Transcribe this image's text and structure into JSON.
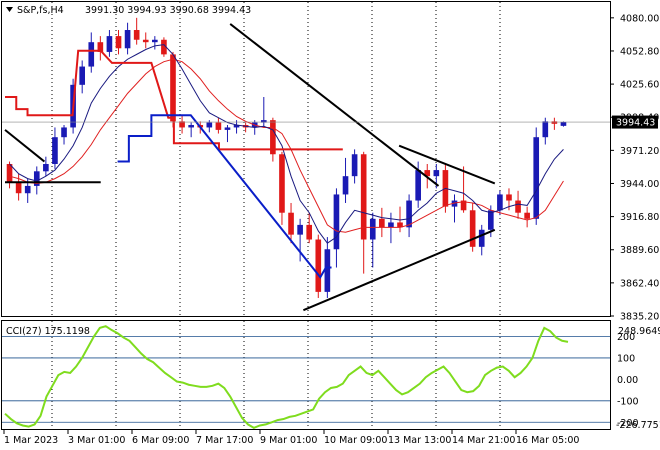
{
  "header": {
    "symbol": "S&P,fs,H4",
    "ohlc": "3991.30 3994.93 3990.68 3994.43"
  },
  "price_panel": {
    "y_ticks": [
      "4080.00",
      "4052.80",
      "4025.60",
      "3998.40",
      "3971.20",
      "3944.00",
      "3916.80",
      "3889.60",
      "3862.40",
      "3835.20"
    ],
    "current_price": "3994.43"
  },
  "cci_panel": {
    "title": "CCI(27) 175.1198",
    "max_label": "248.9649",
    "min_label": "-226.7751",
    "levels": [
      "200",
      "100",
      "0.00",
      "-100",
      "-200"
    ]
  },
  "x_axis": {
    "labels": [
      "1 Mar 2023",
      "3 Mar 01:00",
      "6 Mar 09:00",
      "7 Mar 17:00",
      "9 Mar 01:00",
      "10 Mar 09:00",
      "13 Mar 13:00",
      "14 Mar 21:00",
      "16 Mar 05:00"
    ]
  },
  "colors": {
    "bull": "#1a1ab4",
    "bear": "#e01818",
    "fast_ma": "#1a1a80",
    "slow_ma": "#e02020",
    "stop_red": "#e01818",
    "stop_blue": "#0a1ec8",
    "cci_line": "#7fdc1e",
    "cci_level": "#1e508c",
    "price_tag_bg": "#000000"
  },
  "chart_data": [
    {
      "type": "candlestick",
      "ylim": [
        3835.2,
        4093
      ],
      "candles": [
        [
          3960,
          3962,
          3940,
          3945
        ],
        [
          3945,
          3952,
          3930,
          3936
        ],
        [
          3936,
          3948,
          3928,
          3942
        ],
        [
          3942,
          3958,
          3935,
          3954
        ],
        [
          3954,
          3966,
          3950,
          3960
        ],
        [
          3960,
          3990,
          3956,
          3982
        ],
        [
          3982,
          3992,
          3976,
          3990
        ],
        [
          3990,
          4030,
          3985,
          4025
        ],
        [
          4025,
          4045,
          4018,
          4040
        ],
        [
          4040,
          4068,
          4035,
          4060
        ],
        [
          4060,
          4065,
          4045,
          4052
        ],
        [
          4052,
          4070,
          4048,
          4065
        ],
        [
          4065,
          4070,
          4050,
          4055
        ],
        [
          4055,
          4076,
          4050,
          4070
        ],
        [
          4070,
          4080,
          4058,
          4062
        ],
        [
          4062,
          4068,
          4055,
          4060
        ],
        [
          4060,
          4065,
          4054,
          4062
        ],
        [
          4062,
          4064,
          4048,
          4050
        ],
        [
          4050,
          4052,
          3990,
          3995
        ],
        [
          3995,
          4000,
          3985,
          3990
        ],
        [
          3990,
          3994,
          3982,
          3992
        ],
        [
          3992,
          3995,
          3985,
          3990
        ],
        [
          3990,
          3996,
          3986,
          3994
        ],
        [
          3994,
          3998,
          3985,
          3988
        ],
        [
          3988,
          3992,
          3978,
          3990
        ],
        [
          3990,
          3996,
          3985,
          3992
        ],
        [
          3992,
          3994,
          3986,
          3990
        ],
        [
          3990,
          3996,
          3984,
          3994
        ],
        [
          3994,
          4015,
          3990,
          3996
        ],
        [
          3996,
          3998,
          3962,
          3968
        ],
        [
          3968,
          3970,
          3910,
          3920
        ],
        [
          3920,
          3928,
          3895,
          3902
        ],
        [
          3902,
          3915,
          3880,
          3910
        ],
        [
          3910,
          3920,
          3895,
          3898
        ],
        [
          3898,
          3902,
          3850,
          3855
        ],
        [
          3855,
          3900,
          3850,
          3890
        ],
        [
          3890,
          3940,
          3875,
          3935
        ],
        [
          3935,
          3965,
          3928,
          3950
        ],
        [
          3950,
          3972,
          3944,
          3968
        ],
        [
          3968,
          3970,
          3870,
          3898
        ],
        [
          3898,
          3920,
          3875,
          3915
        ],
        [
          3915,
          3924,
          3900,
          3908
        ],
        [
          3908,
          3920,
          3895,
          3912
        ],
        [
          3912,
          3925,
          3904,
          3908
        ],
        [
          3908,
          3935,
          3900,
          3930
        ],
        [
          3930,
          3962,
          3924,
          3955
        ],
        [
          3955,
          3960,
          3940,
          3950
        ],
        [
          3950,
          3960,
          3940,
          3955
        ],
        [
          3955,
          3960,
          3920,
          3925
        ],
        [
          3925,
          3935,
          3912,
          3930
        ],
        [
          3930,
          3958,
          3920,
          3922
        ],
        [
          3922,
          3928,
          3888,
          3892
        ],
        [
          3892,
          3910,
          3885,
          3906
        ],
        [
          3906,
          3926,
          3900,
          3922
        ],
        [
          3922,
          3938,
          3918,
          3935
        ],
        [
          3935,
          3940,
          3922,
          3930
        ],
        [
          3930,
          3938,
          3915,
          3920
        ],
        [
          3920,
          3925,
          3908,
          3915
        ],
        [
          3915,
          3990,
          3910,
          3982
        ],
        [
          3982,
          3998,
          3976,
          3995
        ],
        [
          3995,
          3998,
          3988,
          3993
        ],
        [
          3991.3,
          3994.93,
          3990.68,
          3994.43
        ]
      ],
      "fast_ma": [
        3960,
        3952,
        3948,
        3946,
        3950,
        3955,
        3964,
        3975,
        3990,
        4010,
        4022,
        4032,
        4040,
        4046,
        4050,
        4054,
        4057,
        4058,
        4050,
        4038,
        4025,
        4012,
        4002,
        3998,
        3994,
        3992,
        3991,
        3990,
        3991,
        3988,
        3975,
        3950,
        3930,
        3920,
        3905,
        3895,
        3900,
        3912,
        3922,
        3920,
        3918,
        3916,
        3915,
        3914,
        3915,
        3922,
        3928,
        3936,
        3940,
        3938,
        3936,
        3930,
        3922,
        3920,
        3922,
        3925,
        3927,
        3926,
        3938,
        3952,
        3964,
        3972
      ],
      "slow_ma": [
        3950,
        3948,
        3945,
        3944,
        3945,
        3948,
        3952,
        3958,
        3966,
        3976,
        3988,
        3998,
        4008,
        4018,
        4026,
        4034,
        4040,
        4044,
        4046,
        4044,
        4038,
        4030,
        4020,
        4012,
        4005,
        3999,
        3995,
        3992,
        3990,
        3990,
        3985,
        3972,
        3955,
        3940,
        3925,
        3910,
        3905,
        3904,
        3906,
        3908,
        3908,
        3908,
        3908,
        3908,
        3910,
        3914,
        3918,
        3922,
        3926,
        3928,
        3929,
        3928,
        3926,
        3922,
        3920,
        3918,
        3916,
        3914,
        3916,
        3922,
        3934,
        3946
      ],
      "stop_red": [
        [
          0,
          4015
        ],
        [
          2,
          4015
        ],
        [
          2,
          4005
        ],
        [
          4,
          4005
        ],
        [
          4,
          4000
        ],
        [
          12,
          4000
        ],
        [
          13,
          4053
        ],
        [
          17,
          4053
        ],
        [
          19,
          4043
        ],
        [
          26,
          4043
        ],
        [
          29,
          3998
        ],
        [
          30,
          3998
        ],
        [
          30,
          3977
        ],
        [
          38,
          3977
        ],
        [
          38,
          3972
        ],
        [
          60,
          3972
        ]
      ],
      "stop_blue": [
        [
          20,
          3962
        ],
        [
          22,
          3962
        ],
        [
          22,
          3983
        ],
        [
          26,
          3983
        ],
        [
          26,
          4000
        ],
        [
          33,
          4000
        ],
        [
          56,
          3867
        ],
        [
          57,
          3875
        ],
        [
          58,
          3875
        ]
      ],
      "stop_black": [
        [
          0,
          3945
        ],
        [
          17,
          3945
        ]
      ],
      "trendlines": [
        [
          [
            0,
            3988
          ],
          [
            7,
            3962
          ]
        ],
        [
          [
            40,
            4075
          ],
          [
            77,
            3942
          ]
        ],
        [
          [
            53,
            3840
          ],
          [
            87,
            3906
          ]
        ],
        [
          [
            70,
            3975
          ],
          [
            87,
            3944
          ]
        ]
      ],
      "trendlines_full_width_index": 100
    },
    {
      "type": "line",
      "name": "CCI(27)",
      "ylim": [
        -226.7751,
        248.9649
      ],
      "values": [
        -160,
        -185,
        -205,
        -215,
        -220,
        -210,
        -170,
        -80,
        -30,
        20,
        35,
        30,
        60,
        100,
        150,
        200,
        240,
        248,
        230,
        215,
        195,
        180,
        150,
        120,
        95,
        80,
        55,
        30,
        10,
        -10,
        -15,
        -25,
        -30,
        -35,
        -35,
        -30,
        -20,
        -40,
        -80,
        -130,
        -180,
        -210,
        -226,
        -215,
        -210,
        -200,
        -190,
        -185,
        -175,
        -170,
        -160,
        -150,
        -140,
        -90,
        -60,
        -40,
        -35,
        -20,
        20,
        40,
        60,
        30,
        20,
        40,
        10,
        -20,
        -50,
        -70,
        -60,
        -40,
        -20,
        10,
        30,
        45,
        60,
        30,
        -10,
        -50,
        -60,
        -55,
        -30,
        20,
        40,
        55,
        60,
        40,
        10,
        30,
        60,
        100,
        180,
        240,
        225,
        195,
        180,
        175
      ]
    }
  ]
}
